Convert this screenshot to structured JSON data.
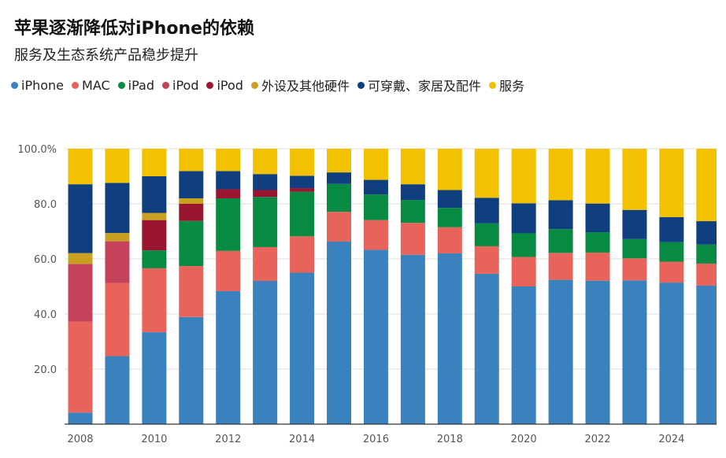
{
  "chart_data": {
    "type": "bar",
    "stacked": true,
    "title": "苹果逐渐降低对iPhone的依赖",
    "subtitle": "服务及生态系统产品稳步提升",
    "xlabel": "",
    "ylabel": "",
    "ylim": [
      0,
      100
    ],
    "y_ticks": [
      "20.0",
      "40.0",
      "60.0",
      "80.0",
      "100.0%"
    ],
    "y_tick_values": [
      20,
      40,
      60,
      80,
      100
    ],
    "x_tick_labels": [
      "2008",
      "2010",
      "2012",
      "2014",
      "2016",
      "2018",
      "2020",
      "2022",
      "2024"
    ],
    "grid": true,
    "legend": "top-left",
    "categories": [
      "2008",
      "2009",
      "2010",
      "2011",
      "2012",
      "2013",
      "2014",
      "2015",
      "2016",
      "2017",
      "2018",
      "2019",
      "2020",
      "2021",
      "2022",
      "2023",
      "2024",
      "2025"
    ],
    "series": [
      {
        "name": "iPhone",
        "color": "#3a82bd",
        "values": [
          4.2,
          24.7,
          33.4,
          38.9,
          48.3,
          52.0,
          55.0,
          66.3,
          63.3,
          61.5,
          62.0,
          54.6,
          50.0,
          52.4,
          52.1,
          52.2,
          51.4,
          50.3
        ]
      },
      {
        "name": "MAC",
        "color": "#e8645a",
        "values": [
          33.0,
          26.5,
          23.2,
          18.5,
          14.6,
          12.3,
          13.2,
          10.8,
          10.8,
          11.6,
          9.5,
          10.0,
          10.7,
          9.8,
          10.2,
          8.0,
          7.6,
          8.0
        ]
      },
      {
        "name": "iPad",
        "color": "#078a42",
        "values": [
          0,
          0,
          6.5,
          16.4,
          19.1,
          18.2,
          16.2,
          10.1,
          9.3,
          8.3,
          7.0,
          8.3,
          8.6,
          8.6,
          7.4,
          7.0,
          7.1,
          6.9
        ]
      },
      {
        "name": "iPod",
        "color": "#c4425a",
        "values": [
          21.0,
          15.2,
          0,
          0,
          0,
          0,
          0,
          0,
          0,
          0,
          0,
          0,
          0,
          0,
          0,
          0,
          0,
          0
        ]
      },
      {
        "name": "iPod",
        "color": "#9a1530",
        "values": [
          0,
          0,
          11.0,
          6.2,
          3.3,
          2.5,
          1.3,
          0,
          0,
          0,
          0,
          0,
          0,
          0,
          0,
          0,
          0,
          0
        ]
      },
      {
        "name": "外设及其他硬件",
        "color": "#c9a020",
        "values": [
          3.9,
          3.0,
          2.6,
          2.0,
          0,
          0,
          0,
          0,
          0,
          0,
          0,
          0,
          0,
          0,
          0,
          0,
          0,
          0
        ]
      },
      {
        "name": "可穿戴、家居及配件",
        "color": "#103f80",
        "values": [
          25.0,
          18.2,
          13.3,
          9.9,
          6.6,
          5.8,
          4.5,
          4.2,
          5.3,
          5.7,
          6.5,
          9.3,
          10.9,
          10.5,
          10.4,
          10.6,
          9.1,
          8.5
        ]
      },
      {
        "name": "服务",
        "color": "#f2c200",
        "values": [
          12.9,
          12.4,
          10.0,
          8.1,
          8.1,
          9.2,
          9.8,
          8.6,
          11.3,
          12.9,
          15.0,
          17.8,
          19.8,
          18.7,
          19.9,
          22.2,
          24.8,
          26.3
        ]
      }
    ]
  }
}
